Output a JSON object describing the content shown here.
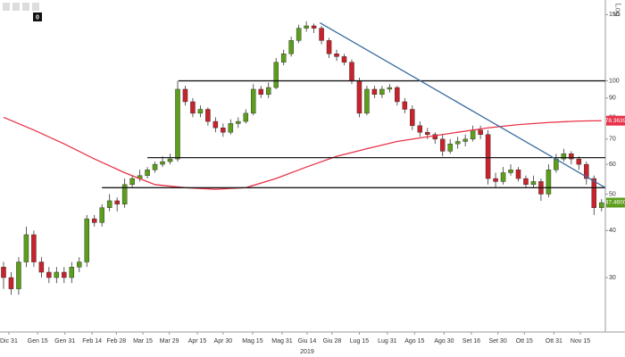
{
  "chart_data": {
    "type": "candlestick",
    "toolbar_badge": "0",
    "log_scale": true,
    "axis_note": "Log",
    "year_label": "2019",
    "up_color": "#5c9e1c",
    "down_color": "#c8232c",
    "xlim": [
      -0.47,
      79.5
    ],
    "ylim": [
      21.5,
      164
    ],
    "yticks": [
      150,
      100,
      90,
      80,
      70,
      60,
      50,
      40,
      30
    ],
    "xticks": [
      {
        "value": 0.7,
        "label": "Dic 31"
      },
      {
        "value": 4.5,
        "label": "Gen 15"
      },
      {
        "value": 8.1,
        "label": "Gen 31"
      },
      {
        "value": 11.7,
        "label": "Feb 14"
      },
      {
        "value": 14.9,
        "label": "Feb 28"
      },
      {
        "value": 18.4,
        "label": "Mar 15"
      },
      {
        "value": 21.9,
        "label": "Mar 29"
      },
      {
        "value": 25.6,
        "label": "Apr 15"
      },
      {
        "value": 29,
        "label": "Apr 30"
      },
      {
        "value": 32.9,
        "label": "Mag 15"
      },
      {
        "value": 36.8,
        "label": "Mag 31"
      },
      {
        "value": 40.1,
        "label": "Giu 14"
      },
      {
        "value": 43.4,
        "label": "Giu 28"
      },
      {
        "value": 47,
        "label": "Lug 15"
      },
      {
        "value": 50.7,
        "label": "Lug 31"
      },
      {
        "value": 54.3,
        "label": "Ago 15"
      },
      {
        "value": 58.2,
        "label": "Ago 30"
      },
      {
        "value": 61.8,
        "label": "Set 16"
      },
      {
        "value": 65.3,
        "label": "Set 30"
      },
      {
        "value": 68.8,
        "label": "Ott 15"
      },
      {
        "value": 72.7,
        "label": "Ott 31"
      },
      {
        "value": 76.2,
        "label": "Nov 15"
      }
    ],
    "open": [
      32,
      30,
      28,
      33,
      39,
      33,
      31,
      30,
      31,
      30,
      32,
      33,
      43,
      42,
      46,
      48,
      47,
      53,
      55,
      56,
      58,
      60,
      61,
      62,
      95,
      88,
      82,
      84,
      78,
      75,
      73,
      77,
      78,
      82,
      95,
      92,
      96,
      112,
      118,
      128,
      138,
      140,
      138,
      128,
      118,
      116,
      112,
      100,
      82,
      95,
      92,
      95,
      96,
      88,
      84,
      76,
      73,
      72,
      70,
      65,
      68,
      69,
      70,
      74,
      72,
      55,
      54,
      57,
      58,
      55,
      53,
      54,
      50,
      58,
      62,
      64,
      62,
      60,
      55,
      46
    ],
    "high": [
      33,
      31,
      34,
      41,
      40,
      34,
      32,
      32,
      32,
      33,
      34,
      44,
      44,
      47,
      50,
      49,
      55,
      56,
      58,
      59,
      61,
      63,
      64,
      100,
      97,
      90,
      86,
      85,
      80,
      77,
      79,
      80,
      84,
      98,
      97,
      99,
      115,
      121,
      131,
      141,
      144,
      142,
      140,
      130,
      121,
      118,
      114,
      102,
      97,
      97,
      97,
      98,
      97,
      90,
      86,
      78,
      75,
      73,
      72,
      70,
      71,
      72,
      76,
      76,
      74,
      57,
      59,
      60,
      59,
      56,
      56,
      55,
      60,
      64,
      66,
      65,
      63,
      61,
      56,
      48.5
    ],
    "low": [
      28,
      27,
      27,
      32,
      32,
      30,
      29,
      29,
      29,
      29,
      31,
      32,
      41,
      41,
      45,
      45,
      46,
      52,
      54,
      55,
      57,
      59,
      60,
      61,
      86,
      80,
      80,
      76,
      73,
      71,
      72,
      75,
      77,
      81,
      90,
      90,
      95,
      110,
      116,
      126,
      135,
      134,
      125,
      115,
      113,
      110,
      98,
      80,
      81,
      90,
      90,
      93,
      86,
      82,
      74,
      71,
      70,
      68,
      63,
      64,
      66,
      67,
      69,
      70,
      53,
      52,
      53,
      56,
      54,
      52,
      52,
      48,
      49,
      57,
      61,
      60,
      58,
      53,
      44,
      45
    ],
    "close": [
      30,
      28,
      33,
      39,
      33,
      31,
      30,
      31,
      30,
      32,
      33,
      43,
      42,
      46,
      48,
      47,
      53,
      55,
      56,
      58,
      60,
      61,
      62,
      95,
      88,
      82,
      84,
      78,
      75,
      73,
      77,
      78,
      82,
      95,
      92,
      96,
      112,
      118,
      128,
      138,
      140,
      138,
      128,
      118,
      116,
      112,
      100,
      82,
      95,
      92,
      95,
      96,
      88,
      84,
      76,
      73,
      72,
      70,
      65,
      68,
      69,
      70,
      74,
      72,
      55,
      54,
      57,
      58,
      55,
      53,
      54,
      50,
      58,
      62,
      64,
      62,
      60,
      55,
      46,
      47.46
    ],
    "lines": [
      {
        "color": "#e8334a",
        "x": [
          0,
          4,
          8,
          12,
          16,
          20,
          24,
          28,
          32,
          36,
          40,
          44,
          48,
          52,
          56,
          60,
          64,
          68,
          72,
          76,
          79
        ],
        "values": [
          80,
          74,
          68,
          62,
          57,
          53,
          52,
          51.5,
          52,
          55,
          59,
          63,
          66,
          69,
          71,
          73,
          75,
          76.5,
          77.5,
          78.2,
          78.36
        ]
      },
      {
        "color": "#1a1a1a",
        "x": [
          23.1,
          79.5
        ],
        "values": [
          100,
          100
        ]
      },
      {
        "color": "#1a1a1a",
        "x": [
          19,
          79.5
        ],
        "values": [
          62.5,
          62.5
        ]
      },
      {
        "color": "#1a1a1a",
        "x": [
          13,
          79.5
        ],
        "values": [
          52,
          52
        ]
      },
      {
        "color": "#3a6c9e",
        "x": [
          41.8,
          79.5
        ],
        "values": [
          142.6,
          52
        ]
      }
    ],
    "price_labels": [
      {
        "value": 78.3639,
        "label": "78.3639",
        "color": "#e8334a"
      },
      {
        "value": 47.46,
        "label": "47.4600",
        "color": "#5c9e1c"
      }
    ]
  }
}
